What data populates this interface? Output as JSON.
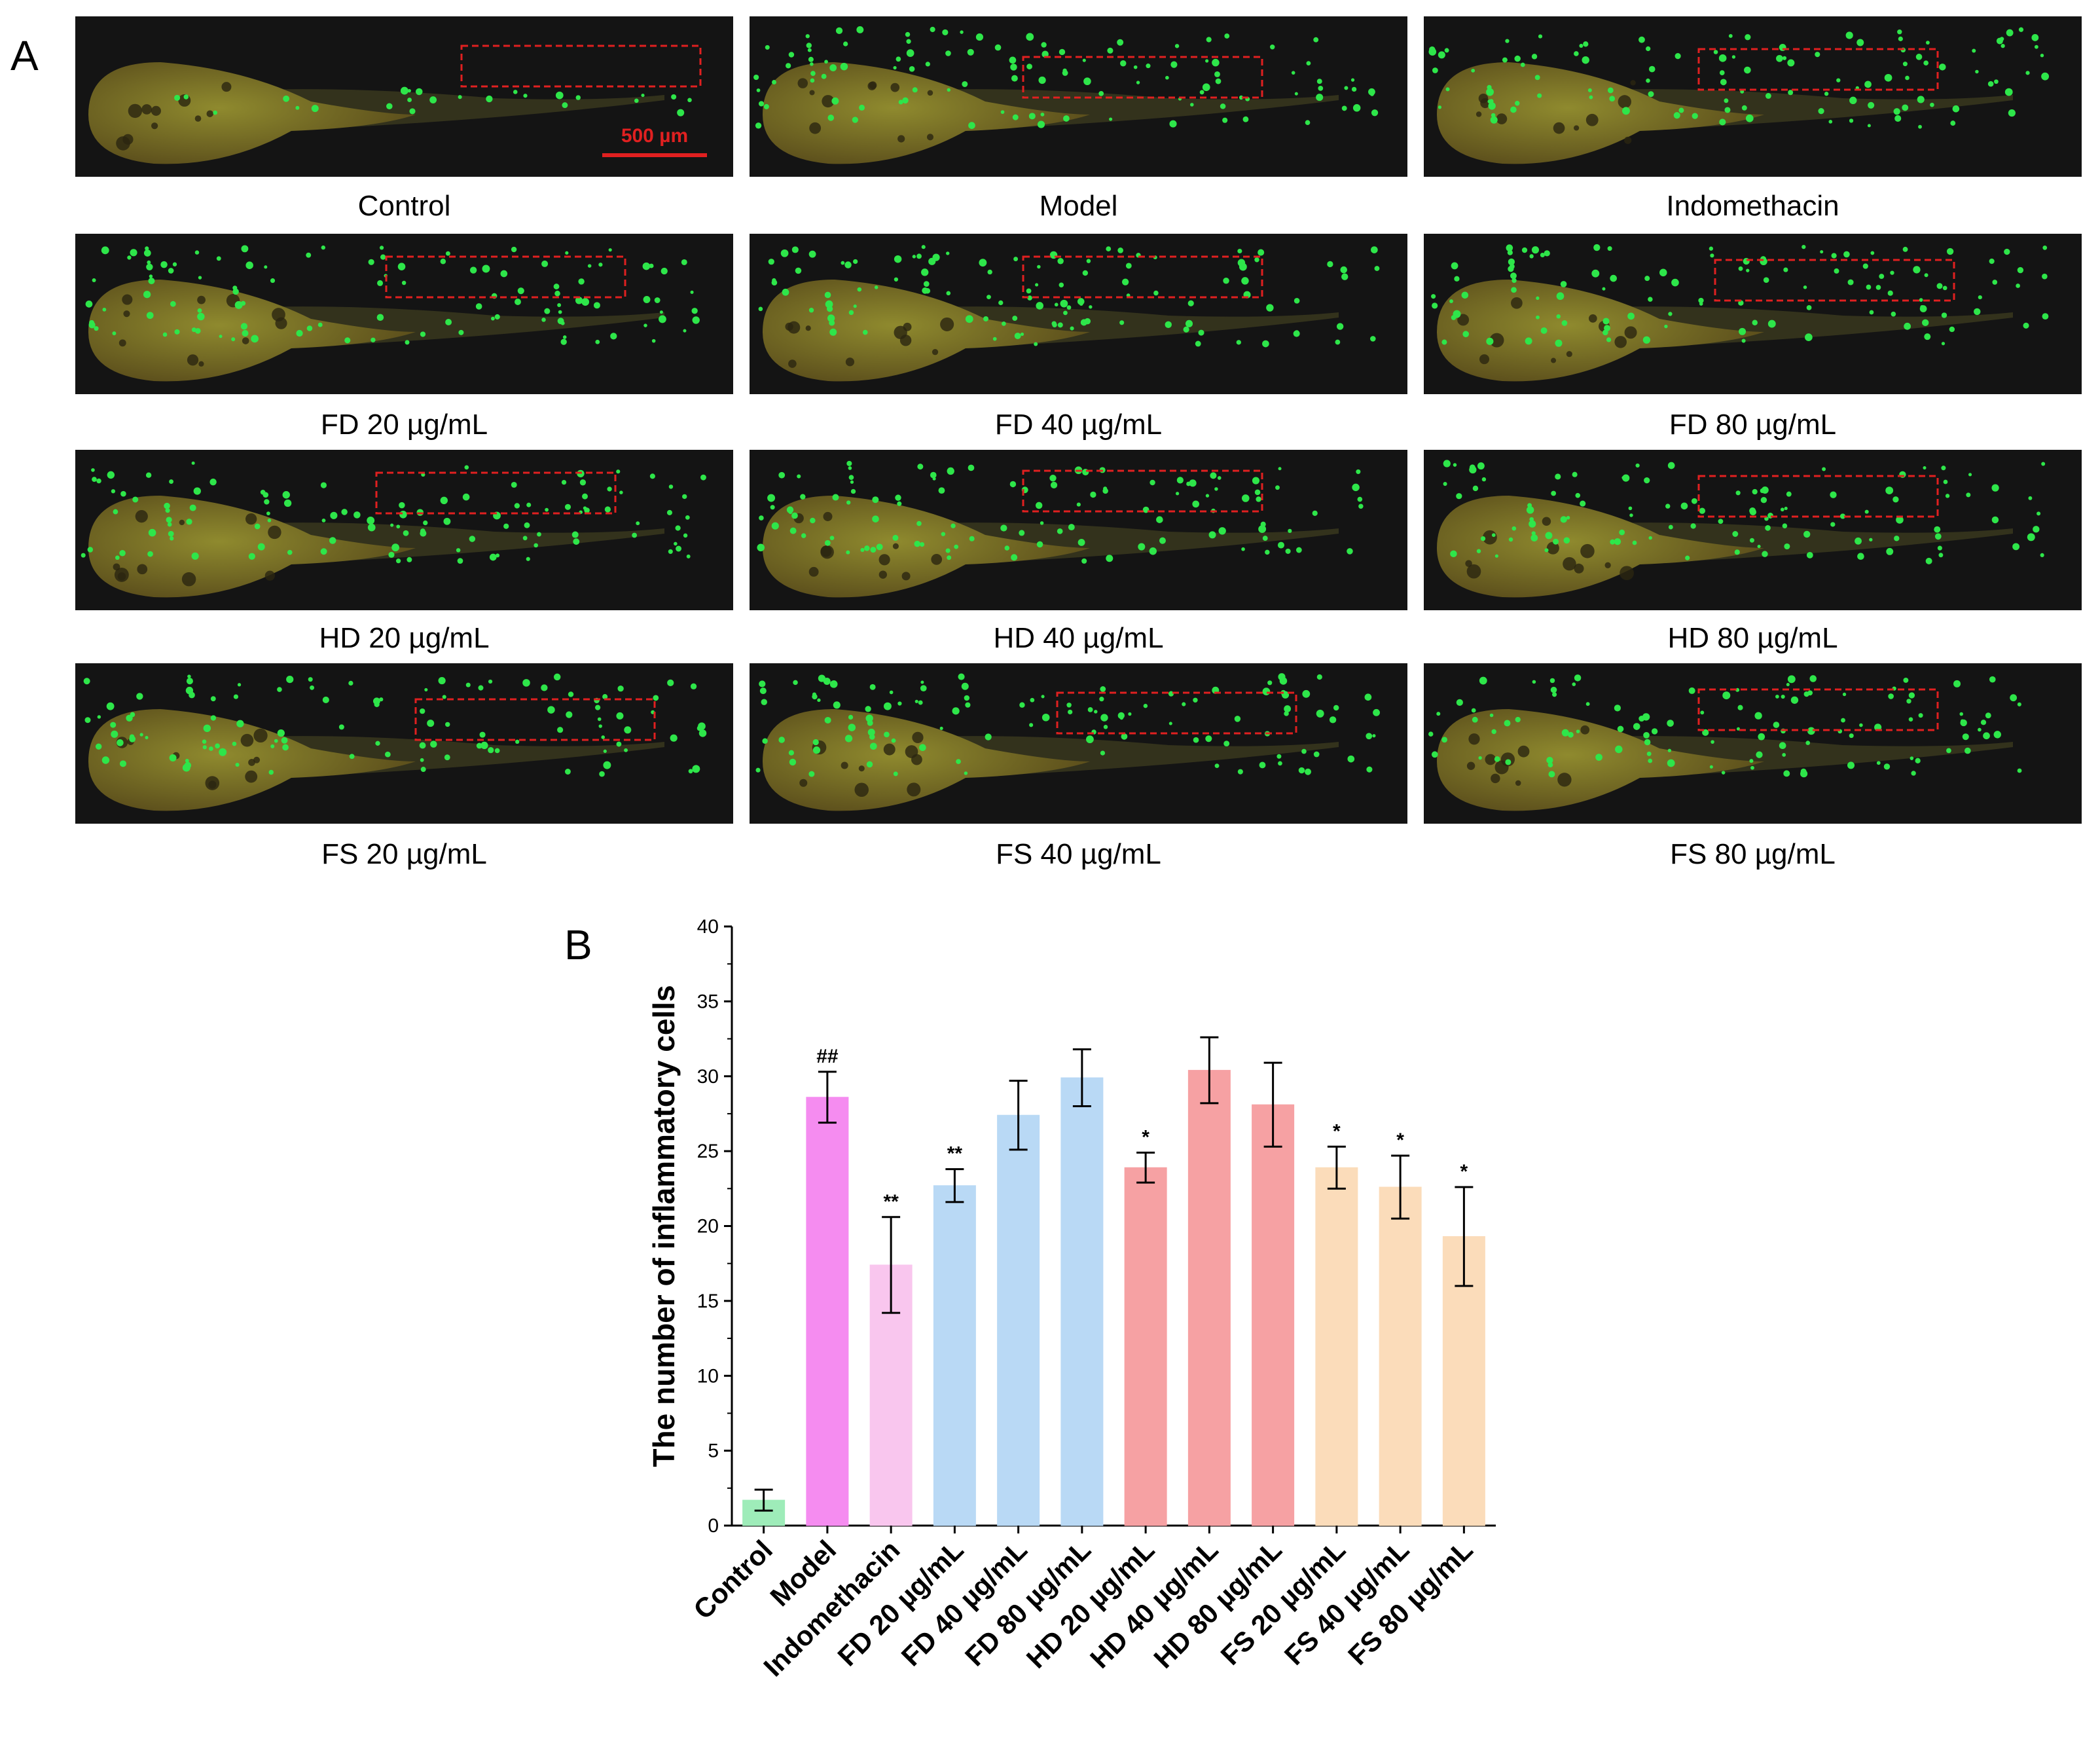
{
  "figure": {
    "panel_a_label": "A",
    "panel_b_label": "B",
    "scale_bar_label": "500 µm",
    "micrographs": [
      {
        "caption": "Control"
      },
      {
        "caption": "Model"
      },
      {
        "caption": "Indomethacin"
      },
      {
        "caption": "FD 20 µg/mL"
      },
      {
        "caption": "FD 40 µg/mL"
      },
      {
        "caption": "FD 80 µg/mL"
      },
      {
        "caption": "HD 20 µg/mL"
      },
      {
        "caption": "HD 40 µg/mL"
      },
      {
        "caption": "HD 80 µg/mL"
      },
      {
        "caption": "FS 20 µg/mL"
      },
      {
        "caption": "FS 40 µg/mL"
      },
      {
        "caption": "FS 80 µg/mL"
      }
    ]
  },
  "chart_data": {
    "type": "bar",
    "title": "",
    "xlabel": "",
    "ylabel": "The number of inflammatory cells",
    "ylim": [
      0,
      40
    ],
    "yticks": [
      "0",
      "5",
      "10",
      "15",
      "20",
      "25",
      "30",
      "35",
      "40"
    ],
    "categories": [
      "Control",
      "Model",
      "Indomethacin",
      "FD 20 µg/mL",
      "FD 40 µg/mL",
      "FD 80 µg/mL",
      "HD 20 µg/mL",
      "HD 40 µg/mL",
      "HD 80 µg/mL",
      "FS 20 µg/mL",
      "FS 40 µg/mL",
      "FS 80 µg/mL"
    ],
    "values": [
      1.7,
      28.6,
      17.4,
      22.7,
      27.4,
      29.9,
      23.9,
      30.4,
      28.1,
      23.9,
      22.6,
      19.3
    ],
    "errors": [
      0.7,
      1.7,
      3.2,
      1.1,
      2.3,
      1.9,
      1.0,
      2.2,
      2.8,
      1.4,
      2.1,
      3.3
    ],
    "annotations": [
      "",
      "##",
      "**",
      "**",
      "",
      "",
      "*",
      "",
      "",
      "*",
      "*",
      "*"
    ],
    "colors": [
      "#9EECB9",
      "#F58CF0",
      "#F9C6EE",
      "#B9D9F5",
      "#B9D9F5",
      "#B9D9F5",
      "#F6A1A3",
      "#F6A1A3",
      "#F6A1A3",
      "#FBDCBA",
      "#FBDCBA",
      "#FBDCBA"
    ],
    "legend": "none",
    "grid": false
  }
}
